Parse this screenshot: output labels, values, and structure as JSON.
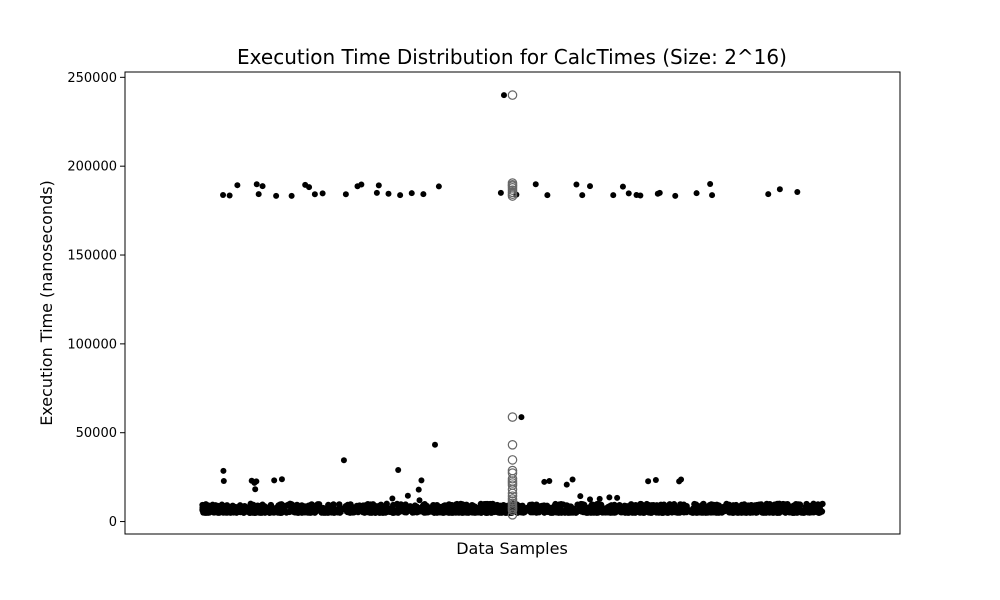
{
  "chart_data": {
    "type": "scatter",
    "title": "Execution Time Distribution for CalcTimes (Size: 2^16)",
    "xlabel": "Data Samples",
    "ylabel": "Execution Time (nanoseconds)",
    "ylim": [
      -7000,
      253000
    ],
    "yticks": [
      0,
      50000,
      100000,
      150000,
      200000,
      250000
    ],
    "ytick_labels": [
      "0",
      "50000",
      "100000",
      "150000",
      "200000",
      "250000"
    ],
    "grid": false,
    "legend": "none",
    "colors": {
      "points": "#000000",
      "box_line": "#808080",
      "fliers": "#666666"
    },
    "boxplot": {
      "q1": 4900,
      "median": 5000,
      "q3": 5100,
      "whisker_low": 4800,
      "whisker_high": 5300,
      "outliers": [
        240000,
        190500,
        189500,
        188800,
        187800,
        186500,
        185300,
        184200,
        183200,
        58800,
        43200,
        34700,
        28700,
        27300,
        24100,
        22800,
        21700,
        20500,
        18100,
        15900,
        14300,
        12700,
        11500,
        10300,
        9300,
        8300,
        7300,
        6300,
        3800
      ]
    },
    "stripplot": {
      "dense_band": [
        5000,
        10000
      ],
      "points": [
        {
          "x": 0.254,
          "y": 28500
        },
        {
          "x": 0.255,
          "y": 22800
        },
        {
          "x": 0.327,
          "y": 23000
        },
        {
          "x": 0.334,
          "y": 21800
        },
        {
          "x": 0.336,
          "y": 18200
        },
        {
          "x": 0.339,
          "y": 22600
        },
        {
          "x": 0.385,
          "y": 23200
        },
        {
          "x": 0.405,
          "y": 23800
        },
        {
          "x": 0.565,
          "y": 34500
        },
        {
          "x": 0.705,
          "y": 29000
        },
        {
          "x": 0.758,
          "y": 18000
        },
        {
          "x": 0.765,
          "y": 23200
        },
        {
          "x": 0.73,
          "y": 14500
        },
        {
          "x": 0.76,
          "y": 12000
        },
        {
          "x": 0.69,
          "y": 13000
        },
        {
          "x": 0.8,
          "y": 43200
        },
        {
          "x": 0.978,
          "y": 240000
        },
        {
          "x": 1.023,
          "y": 58800
        },
        {
          "x": 1.082,
          "y": 22300
        },
        {
          "x": 1.095,
          "y": 22800
        },
        {
          "x": 1.14,
          "y": 20800
        },
        {
          "x": 1.155,
          "y": 23700
        },
        {
          "x": 1.175,
          "y": 14300
        },
        {
          "x": 1.2,
          "y": 12500
        },
        {
          "x": 1.225,
          "y": 12800
        },
        {
          "x": 1.25,
          "y": 13600
        },
        {
          "x": 1.27,
          "y": 13300
        },
        {
          "x": 1.35,
          "y": 22700
        },
        {
          "x": 1.37,
          "y": 23400
        },
        {
          "x": 1.43,
          "y": 22600
        },
        {
          "x": 1.435,
          "y": 23700
        },
        {
          "x": 0.253,
          "y": 183800
        },
        {
          "x": 0.27,
          "y": 183500
        },
        {
          "x": 0.29,
          "y": 189300
        },
        {
          "x": 0.34,
          "y": 189800
        },
        {
          "x": 0.355,
          "y": 188800
        },
        {
          "x": 0.345,
          "y": 184300
        },
        {
          "x": 0.39,
          "y": 183300
        },
        {
          "x": 0.43,
          "y": 183300
        },
        {
          "x": 0.465,
          "y": 189500
        },
        {
          "x": 0.475,
          "y": 188200
        },
        {
          "x": 0.49,
          "y": 184200
        },
        {
          "x": 0.51,
          "y": 184700
        },
        {
          "x": 0.57,
          "y": 184200
        },
        {
          "x": 0.6,
          "y": 188700
        },
        {
          "x": 0.61,
          "y": 189700
        },
        {
          "x": 0.65,
          "y": 185000
        },
        {
          "x": 0.655,
          "y": 189200
        },
        {
          "x": 0.68,
          "y": 184500
        },
        {
          "x": 0.71,
          "y": 183700
        },
        {
          "x": 0.74,
          "y": 184800
        },
        {
          "x": 0.77,
          "y": 184300
        },
        {
          "x": 0.81,
          "y": 188600
        },
        {
          "x": 0.97,
          "y": 185000
        },
        {
          "x": 1.01,
          "y": 184000
        },
        {
          "x": 1.06,
          "y": 189800
        },
        {
          "x": 1.09,
          "y": 183700
        },
        {
          "x": 1.165,
          "y": 189700
        },
        {
          "x": 1.18,
          "y": 183700
        },
        {
          "x": 1.2,
          "y": 188800
        },
        {
          "x": 1.26,
          "y": 183700
        },
        {
          "x": 1.285,
          "y": 188500
        },
        {
          "x": 1.3,
          "y": 184700
        },
        {
          "x": 1.32,
          "y": 183800
        },
        {
          "x": 1.33,
          "y": 183500
        },
        {
          "x": 1.375,
          "y": 184500
        },
        {
          "x": 1.38,
          "y": 185000
        },
        {
          "x": 1.42,
          "y": 183300
        },
        {
          "x": 1.475,
          "y": 184800
        },
        {
          "x": 1.51,
          "y": 190000
        },
        {
          "x": 1.515,
          "y": 183700
        },
        {
          "x": 1.66,
          "y": 184300
        },
        {
          "x": 1.69,
          "y": 187000
        },
        {
          "x": 1.735,
          "y": 185500
        }
      ]
    }
  }
}
